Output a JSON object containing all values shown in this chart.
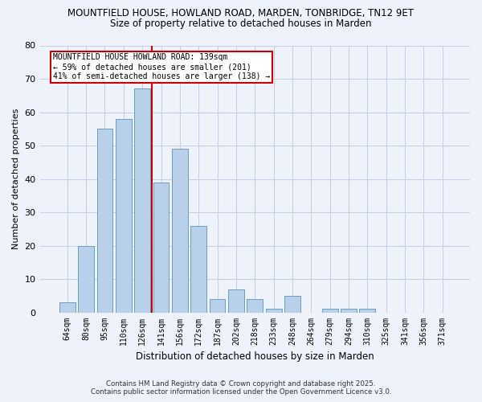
{
  "title1": "MOUNTFIELD HOUSE, HOWLAND ROAD, MARDEN, TONBRIDGE, TN12 9ET",
  "title2": "Size of property relative to detached houses in Marden",
  "xlabel": "Distribution of detached houses by size in Marden",
  "ylabel": "Number of detached properties",
  "categories": [
    "64sqm",
    "80sqm",
    "95sqm",
    "110sqm",
    "126sqm",
    "141sqm",
    "156sqm",
    "172sqm",
    "187sqm",
    "202sqm",
    "218sqm",
    "233sqm",
    "248sqm",
    "264sqm",
    "279sqm",
    "294sqm",
    "310sqm",
    "325sqm",
    "341sqm",
    "356sqm",
    "371sqm"
  ],
  "values": [
    3,
    20,
    55,
    58,
    67,
    39,
    49,
    26,
    4,
    7,
    4,
    1,
    5,
    0,
    1,
    1,
    1,
    0,
    0,
    0,
    0
  ],
  "bar_color": "#b8d0ea",
  "bar_edge_color": "#6b9dc2",
  "vline_x_index": 5,
  "marker_label_line1": "MOUNTFIELD HOUSE HOWLAND ROAD: 139sqm",
  "marker_label_line2": "← 59% of detached houses are smaller (201)",
  "marker_label_line3": "41% of semi-detached houses are larger (138) →",
  "annotation_box_facecolor": "#ffffff",
  "annotation_box_edgecolor": "#cc0000",
  "vline_color": "#cc0000",
  "ylim": [
    0,
    80
  ],
  "yticks": [
    0,
    10,
    20,
    30,
    40,
    50,
    60,
    70,
    80
  ],
  "footer1": "Contains HM Land Registry data © Crown copyright and database right 2025.",
  "footer2": "Contains public sector information licensed under the Open Government Licence v3.0.",
  "bg_color": "#eef2fb",
  "grid_color": "#c8d0e8"
}
